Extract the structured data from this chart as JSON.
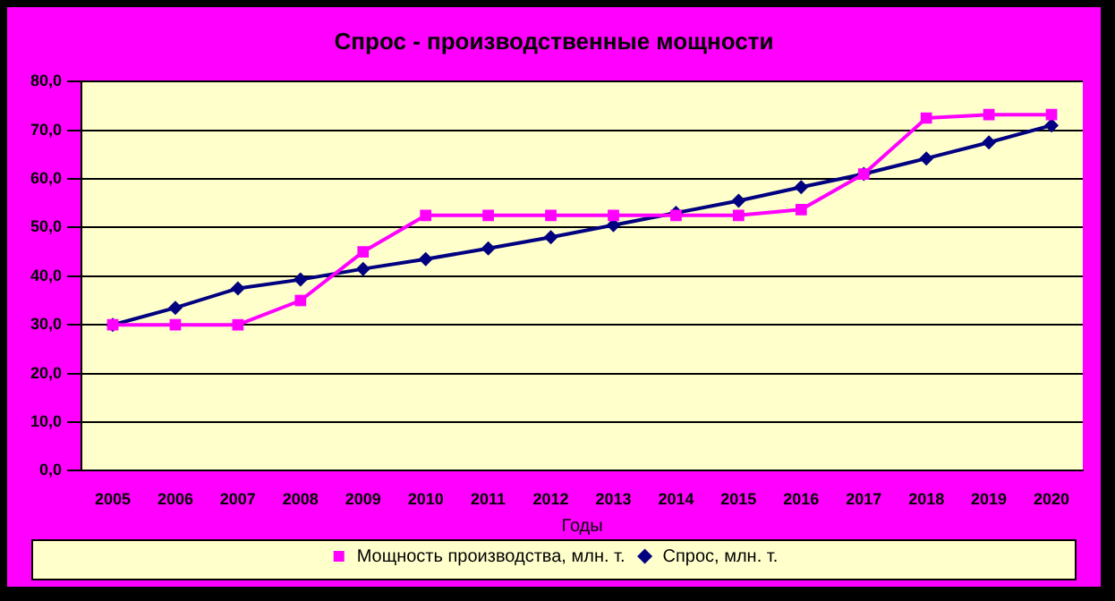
{
  "chart_data": {
    "type": "line",
    "title": "Спрос - производственные мощности",
    "xlabel": "Годы",
    "categories": [
      "2005",
      "2006",
      "2007",
      "2008",
      "2009",
      "2010",
      "2011",
      "2012",
      "2013",
      "2014",
      "2015",
      "2016",
      "2017",
      "2018",
      "2019",
      "2020"
    ],
    "series": [
      {
        "name": "Спрос, млн. т.",
        "color": "#000080",
        "marker": "diamond",
        "values": [
          30,
          33.5,
          37.5,
          39.3,
          41.5,
          43.5,
          45.7,
          48,
          50.5,
          53,
          55.5,
          58.3,
          61,
          64.2,
          67.5,
          71
        ]
      },
      {
        "name": "Мощность производства, млн. т.",
        "color": "#ff00ff",
        "marker": "square",
        "values": [
          30,
          30,
          30,
          35,
          45,
          52.5,
          52.5,
          52.5,
          52.5,
          52.5,
          52.5,
          53.7,
          61,
          72.5,
          73.2,
          73.2
        ]
      }
    ],
    "ylim": [
      0,
      80
    ],
    "yticks": [
      {
        "value": 0,
        "label": "0,0"
      },
      {
        "value": 10,
        "label": "10,0"
      },
      {
        "value": 20,
        "label": "20,0"
      },
      {
        "value": 30,
        "label": "30,0"
      },
      {
        "value": 40,
        "label": "40,0"
      },
      {
        "value": 50,
        "label": "50,0"
      },
      {
        "value": 60,
        "label": "60,0"
      },
      {
        "value": 70,
        "label": "70,0"
      },
      {
        "value": 80,
        "label": "80,0"
      }
    ],
    "grid": "y",
    "legend": "bottom"
  }
}
